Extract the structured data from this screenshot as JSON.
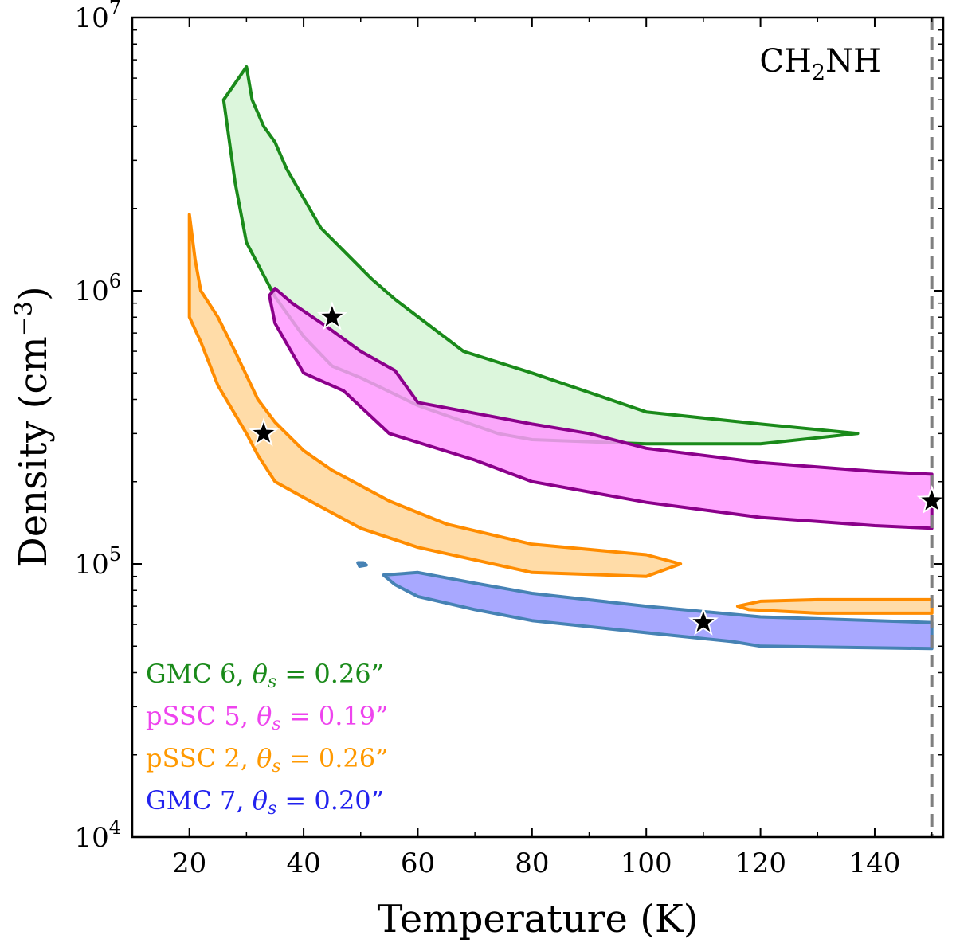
{
  "chart_data": {
    "type": "contour",
    "title": "",
    "annotation": {
      "molecule_main": "CH",
      "molecule_sub": "2",
      "molecule_rest": "NH"
    },
    "xlabel": "Temperature (K)",
    "ylabel_prefix": "Density (cm",
    "ylabel_exp": "−3",
    "ylabel_suffix": ")",
    "xlim": [
      10,
      152
    ],
    "ylim": [
      10000,
      10000000
    ],
    "yscale": "log",
    "xticks": [
      20,
      40,
      60,
      80,
      100,
      120,
      140
    ],
    "xtick_labels": [
      "20",
      "40",
      "60",
      "80",
      "100",
      "120",
      "140"
    ],
    "yticks": [
      10000,
      100000,
      1000000,
      10000000
    ],
    "ytick_base": "10",
    "ytick_exps": [
      "4",
      "5",
      "6",
      "7"
    ],
    "vline_x": 150,
    "vline_color": "#7f7f7f",
    "series": [
      {
        "name": "GMC 6",
        "fill": "#d6f5d6",
        "stroke": "#1a8a1a",
        "contours": [
          [
            [
              26,
              5000000
            ],
            [
              30,
              6600000
            ],
            [
              31,
              5000000
            ],
            [
              33,
              4000000
            ],
            [
              35,
              3500000
            ],
            [
              37,
              2800000
            ],
            [
              43,
              1700000
            ],
            [
              52,
              1100000
            ],
            [
              56,
              930000
            ],
            [
              68,
              600000
            ],
            [
              80,
              500000
            ],
            [
              100,
              360000
            ],
            [
              120,
              325000
            ],
            [
              137,
              300000
            ],
            [
              120,
              275000
            ],
            [
              100,
              275000
            ],
            [
              80,
              285000
            ],
            [
              74,
              300000
            ],
            [
              60,
              380000
            ],
            [
              50,
              480000
            ],
            [
              45,
              530000
            ],
            [
              40,
              680000
            ],
            [
              35,
              950000
            ],
            [
              30,
              1500000
            ],
            [
              28,
              2500000
            ],
            [
              26,
              5000000
            ]
          ]
        ]
      },
      {
        "name": "pSSC 5",
        "fill": "#ff99ff",
        "stroke": "#8b008b",
        "contours": [
          [
            [
              34,
              960000
            ],
            [
              35,
              1020000
            ],
            [
              38,
              900000
            ],
            [
              44,
              740000
            ],
            [
              50,
              600000
            ],
            [
              56,
              510000
            ],
            [
              60,
              390000
            ],
            [
              80,
              325000
            ],
            [
              90,
              300000
            ],
            [
              100,
              265000
            ],
            [
              120,
              235000
            ],
            [
              140,
              218000
            ],
            [
              150,
              213000
            ],
            [
              150,
              135000
            ],
            [
              140,
              138000
            ],
            [
              120,
              148000
            ],
            [
              100,
              168000
            ],
            [
              80,
              200000
            ],
            [
              70,
              240000
            ],
            [
              55,
              300000
            ],
            [
              47,
              430000
            ],
            [
              40,
              500000
            ],
            [
              35,
              760000
            ],
            [
              34,
              960000
            ]
          ]
        ]
      },
      {
        "name": "pSSC 2",
        "fill": "#ffd699",
        "stroke": "#ff8c00",
        "contours": [
          [
            [
              20,
              1900000
            ],
            [
              21,
              1300000
            ],
            [
              22,
              1000000
            ],
            [
              25,
              800000
            ],
            [
              28,
              600000
            ],
            [
              32,
              400000
            ],
            [
              35,
              330000
            ],
            [
              40,
              260000
            ],
            [
              45,
              220000
            ],
            [
              55,
              170000
            ],
            [
              65,
              140000
            ],
            [
              80,
              118000
            ],
            [
              100,
              108000
            ],
            [
              106,
              100000
            ],
            [
              100,
              90000
            ],
            [
              80,
              93000
            ],
            [
              60,
              115000
            ],
            [
              50,
              135000
            ],
            [
              40,
              175000
            ],
            [
              35,
              200000
            ],
            [
              32,
              250000
            ],
            [
              30,
              300000
            ],
            [
              25,
              450000
            ],
            [
              22,
              650000
            ],
            [
              20,
              800000
            ],
            [
              20,
              1900000
            ]
          ],
          [
            [
              116,
              70000
            ],
            [
              120,
              73000
            ],
            [
              130,
              74000
            ],
            [
              150,
              74000
            ],
            [
              150,
              66000
            ],
            [
              130,
              66000
            ],
            [
              118,
              68000
            ],
            [
              116,
              70000
            ]
          ]
        ]
      },
      {
        "name": "GMC 7",
        "fill": "#9999ff",
        "stroke": "#4682b4",
        "contours": [
          [
            [
              54,
              91000
            ],
            [
              60,
              93000
            ],
            [
              70,
              85000
            ],
            [
              80,
              78000
            ],
            [
              100,
              70000
            ],
            [
              120,
              64000
            ],
            [
              150,
              61000
            ],
            [
              150,
              49000
            ],
            [
              120,
              50000
            ],
            [
              115,
              52000
            ],
            [
              100,
              56000
            ],
            [
              80,
              62000
            ],
            [
              70,
              68000
            ],
            [
              60,
              76000
            ],
            [
              56,
              84000
            ],
            [
              54,
              91000
            ]
          ],
          [
            [
              49.5,
              101000
            ],
            [
              50.5,
              101000
            ],
            [
              51,
              99000
            ],
            [
              49.8,
              98000
            ],
            [
              49.5,
              101000
            ]
          ]
        ]
      }
    ],
    "stars": [
      {
        "x": 45,
        "y": 800000
      },
      {
        "x": 33,
        "y": 300000
      },
      {
        "x": 150,
        "y": 170000
      },
      {
        "x": 110,
        "y": 61000
      }
    ],
    "legend": [
      {
        "prefix": "GMC 6, ",
        "theta": "θ",
        "theta_sub": "s",
        "value": " = 0.26”",
        "color": "#1a8a1a"
      },
      {
        "prefix": "pSSC 5, ",
        "theta": "θ",
        "theta_sub": "s",
        "value": " = 0.19”",
        "color": "#ee44ee"
      },
      {
        "prefix": "pSSC 2, ",
        "theta": "θ",
        "theta_sub": "s",
        "value": " = 0.26”",
        "color": "#ff9900"
      },
      {
        "prefix": "GMC 7, ",
        "theta": "θ",
        "theta_sub": "s",
        "value": " = 0.20”",
        "color": "#2222ee"
      }
    ]
  }
}
